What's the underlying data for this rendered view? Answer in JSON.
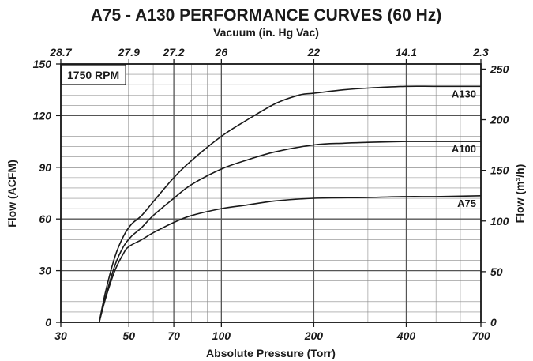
{
  "chart_data": {
    "type": "line",
    "title": "A75 - A130 PERFORMANCE CURVES (60 Hz)",
    "badge": "1750 RPM",
    "xlabel": "Absolute Pressure (Torr)",
    "x_scale": "log",
    "xlim": [
      30,
      700
    ],
    "x_ticks": [
      30,
      50,
      70,
      100,
      200,
      400,
      700
    ],
    "x_minor": [
      40,
      60,
      80,
      90,
      300,
      500,
      600
    ],
    "top_axis": {
      "label": "Vacuum (in. Hg Vac)",
      "ticks": [
        {
          "at_torr": 30,
          "label": "28.7"
        },
        {
          "at_torr": 50,
          "label": "27.9"
        },
        {
          "at_torr": 70,
          "label": "27.2"
        },
        {
          "at_torr": 100,
          "label": "26"
        },
        {
          "at_torr": 200,
          "label": "22"
        },
        {
          "at_torr": 400,
          "label": "14.1"
        },
        {
          "at_torr": 700,
          "label": "2.3"
        }
      ]
    },
    "ylabel": "Flow (ACFM)",
    "ylim": [
      0,
      150
    ],
    "y_ticks": [
      0,
      30,
      60,
      90,
      120,
      150
    ],
    "y_minor_step": 6,
    "y2label": "Flow (m³/h)",
    "y2lim": [
      0,
      255
    ],
    "y2_ticks": [
      0,
      50,
      100,
      150,
      200,
      250
    ],
    "series": [
      {
        "name": "A130",
        "x": [
          40,
          42,
          45,
          48,
          51,
          55,
          60,
          70,
          80,
          100,
          120,
          150,
          180,
          200,
          250,
          300,
          400,
          500,
          700
        ],
        "y": [
          0,
          18,
          38,
          50,
          57,
          62,
          70,
          84,
          94,
          108,
          117,
          127,
          132,
          133,
          135,
          136,
          137,
          137,
          137
        ]
      },
      {
        "name": "A100",
        "x": [
          40,
          42,
          45,
          48,
          51,
          55,
          60,
          70,
          80,
          100,
          120,
          150,
          200,
          250,
          300,
          400,
          500,
          700
        ],
        "y": [
          0,
          15,
          33,
          44,
          50,
          55,
          62,
          72,
          80,
          89,
          94,
          99,
          103,
          104,
          104.5,
          105,
          105,
          105
        ]
      },
      {
        "name": "A75",
        "x": [
          40,
          42,
          45,
          48,
          50,
          55,
          60,
          70,
          80,
          100,
          120,
          150,
          200,
          300,
          400,
          500,
          700
        ],
        "y": [
          0,
          14,
          30,
          40,
          44,
          48,
          52,
          58,
          62,
          66,
          68,
          70.5,
          72,
          72.5,
          73,
          73,
          73.5
        ]
      }
    ]
  }
}
